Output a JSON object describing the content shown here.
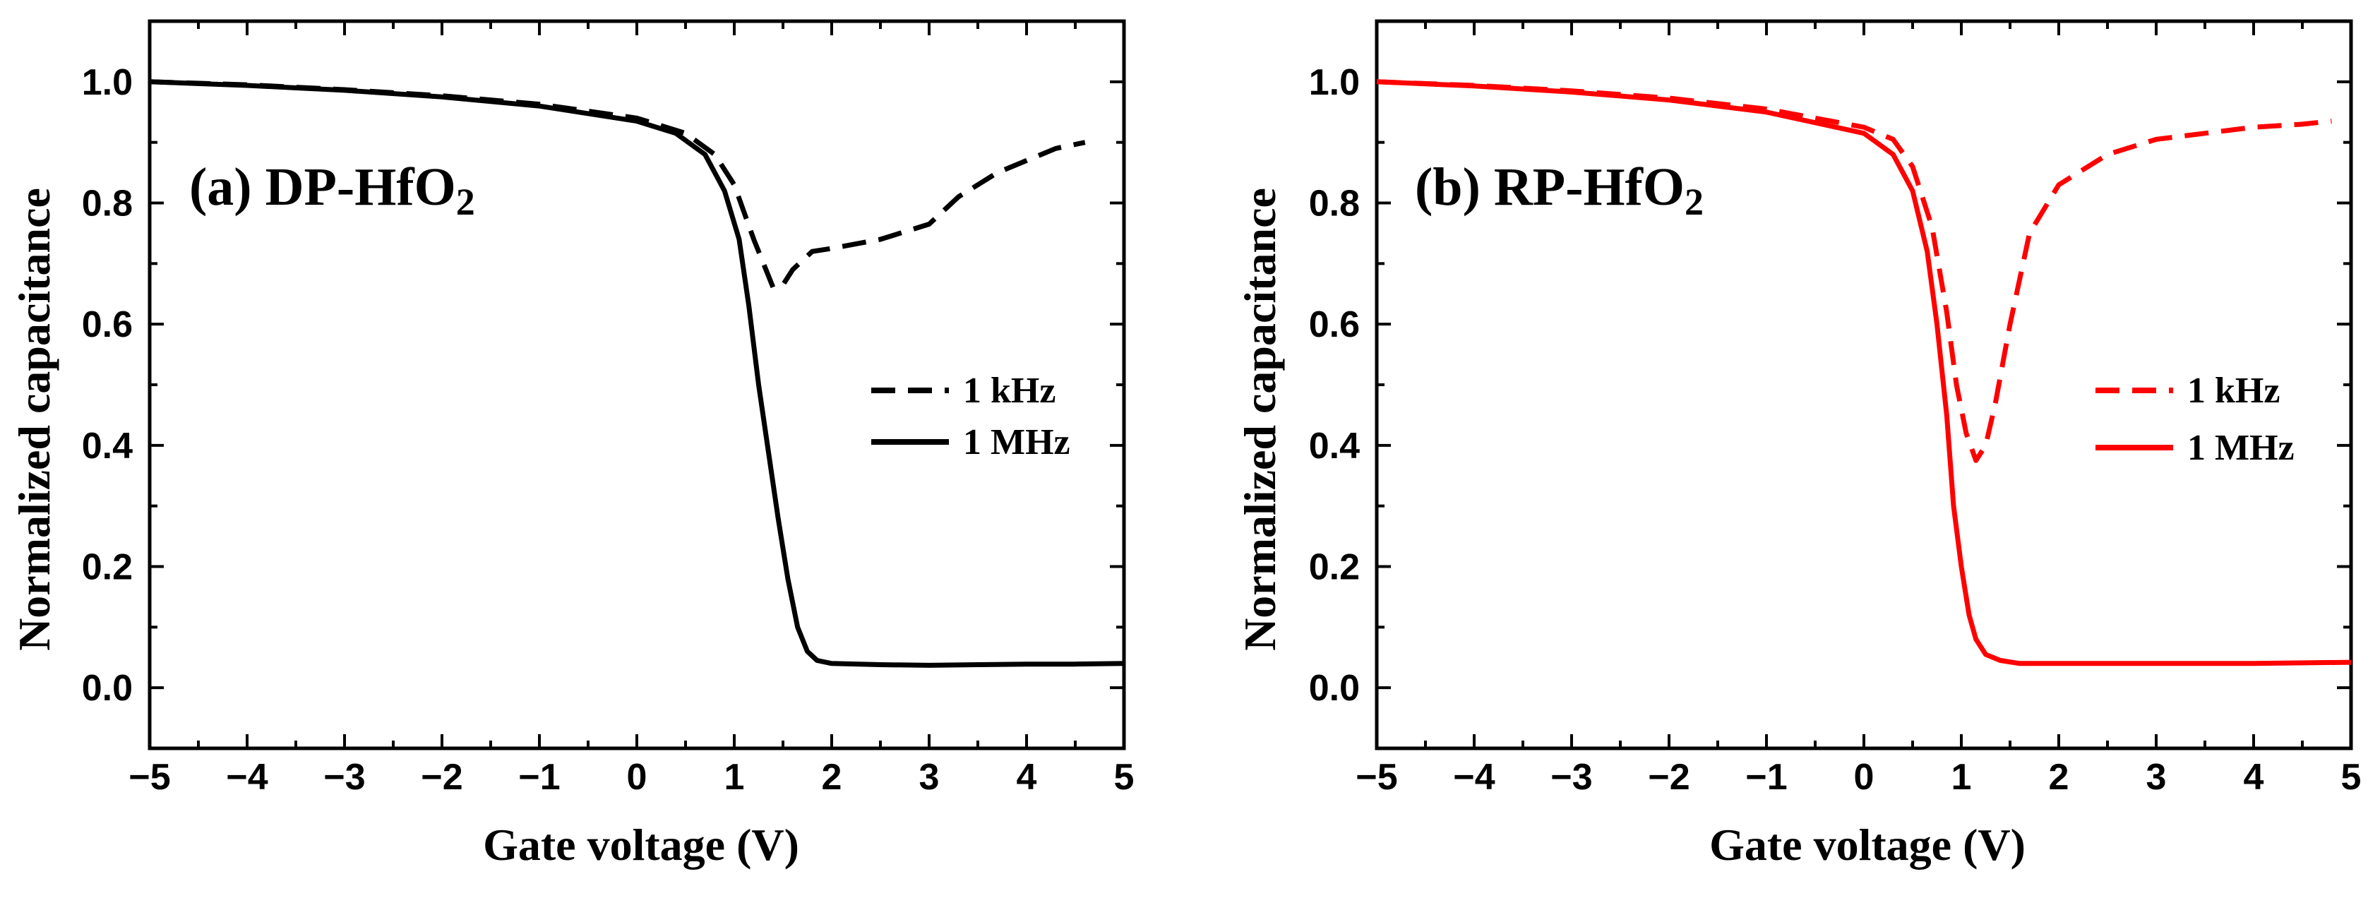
{
  "chart_data": [
    {
      "type": "line",
      "panel_label": "(a) DP-HfO",
      "panel_label_sub": "2",
      "xlabel": "Gate voltage (V)",
      "ylabel": "Normalized capacitance",
      "xlim": [
        -5,
        5
      ],
      "ylim": [
        -0.1,
        1.1
      ],
      "xticks": [
        -5,
        -4,
        -3,
        -2,
        -1,
        0,
        1,
        2,
        3,
        4,
        5
      ],
      "xtick_labels": [
        "−5",
        "−4",
        "−3",
        "−2",
        "−1",
        "0",
        "1",
        "2",
        "3",
        "4",
        "5"
      ],
      "yticks": [
        0.0,
        0.2,
        0.4,
        0.6,
        0.8,
        1.0
      ],
      "ytick_labels": [
        "0.0",
        "0.2",
        "0.4",
        "0.6",
        "0.8",
        "1.0"
      ],
      "legend": {
        "position": "center-right"
      },
      "color": "#000000",
      "series": [
        {
          "name": "1 kHz",
          "style": "dashed",
          "x": [
            -5,
            -4,
            -3,
            -2,
            -1,
            0,
            0.5,
            0.8,
            1.0,
            1.2,
            1.4,
            1.5,
            1.6,
            1.8,
            2.0,
            2.5,
            3.0,
            3.3,
            3.7,
            4.0,
            4.3,
            4.6
          ],
          "y": [
            1.0,
            0.995,
            0.987,
            0.977,
            0.963,
            0.94,
            0.915,
            0.88,
            0.83,
            0.74,
            0.66,
            0.665,
            0.69,
            0.72,
            0.725,
            0.74,
            0.765,
            0.81,
            0.85,
            0.87,
            0.89,
            0.9
          ]
        },
        {
          "name": "1 MHz",
          "style": "solid",
          "x": [
            -5,
            -4,
            -3,
            -2,
            -1,
            0,
            0.4,
            0.7,
            0.9,
            1.05,
            1.15,
            1.25,
            1.35,
            1.45,
            1.55,
            1.65,
            1.75,
            1.85,
            2.0,
            2.5,
            3.0,
            3.5,
            4.0,
            4.5,
            5.0
          ],
          "y": [
            1.0,
            0.994,
            0.986,
            0.975,
            0.96,
            0.935,
            0.915,
            0.88,
            0.82,
            0.74,
            0.63,
            0.5,
            0.39,
            0.28,
            0.18,
            0.1,
            0.06,
            0.045,
            0.04,
            0.038,
            0.037,
            0.038,
            0.039,
            0.039,
            0.04
          ]
        }
      ]
    },
    {
      "type": "line",
      "panel_label": "(b) RP-HfO",
      "panel_label_sub": "2",
      "xlabel": "Gate voltage (V)",
      "ylabel": "Normalized capacitance",
      "xlim": [
        -5,
        5
      ],
      "ylim": [
        -0.1,
        1.1
      ],
      "xticks": [
        -5,
        -4,
        -3,
        -2,
        -1,
        0,
        1,
        2,
        3,
        4,
        5
      ],
      "xtick_labels": [
        "−5",
        "−4",
        "−3",
        "−2",
        "−1",
        "0",
        "1",
        "2",
        "3",
        "4",
        "5"
      ],
      "yticks": [
        0.0,
        0.2,
        0.4,
        0.6,
        0.8,
        1.0
      ],
      "ytick_labels": [
        "0.0",
        "0.2",
        "0.4",
        "0.6",
        "0.8",
        "1.0"
      ],
      "legend": {
        "position": "center-right"
      },
      "color": "#ff0000",
      "series": [
        {
          "name": "1 kHz",
          "style": "dashed",
          "x": [
            -5,
            -4,
            -3,
            -2,
            -1,
            0,
            0.3,
            0.5,
            0.7,
            0.85,
            0.95,
            1.05,
            1.15,
            1.25,
            1.35,
            1.5,
            1.7,
            2.0,
            2.5,
            3.0,
            3.5,
            4.0,
            4.5,
            4.8
          ],
          "y": [
            1.0,
            0.994,
            0.985,
            0.973,
            0.955,
            0.925,
            0.905,
            0.86,
            0.76,
            0.62,
            0.5,
            0.42,
            0.375,
            0.4,
            0.47,
            0.6,
            0.75,
            0.83,
            0.88,
            0.905,
            0.915,
            0.925,
            0.93,
            0.935
          ]
        },
        {
          "name": "1 MHz",
          "style": "solid",
          "x": [
            -5,
            -4,
            -3,
            -2,
            -1,
            0,
            0.3,
            0.5,
            0.65,
            0.75,
            0.85,
            0.92,
            1.0,
            1.08,
            1.15,
            1.25,
            1.4,
            1.6,
            2.0,
            3.0,
            4.0,
            5.0
          ],
          "y": [
            1.0,
            0.993,
            0.983,
            0.97,
            0.95,
            0.915,
            0.88,
            0.82,
            0.72,
            0.6,
            0.45,
            0.3,
            0.2,
            0.12,
            0.08,
            0.055,
            0.045,
            0.04,
            0.04,
            0.04,
            0.04,
            0.042
          ]
        }
      ]
    }
  ]
}
